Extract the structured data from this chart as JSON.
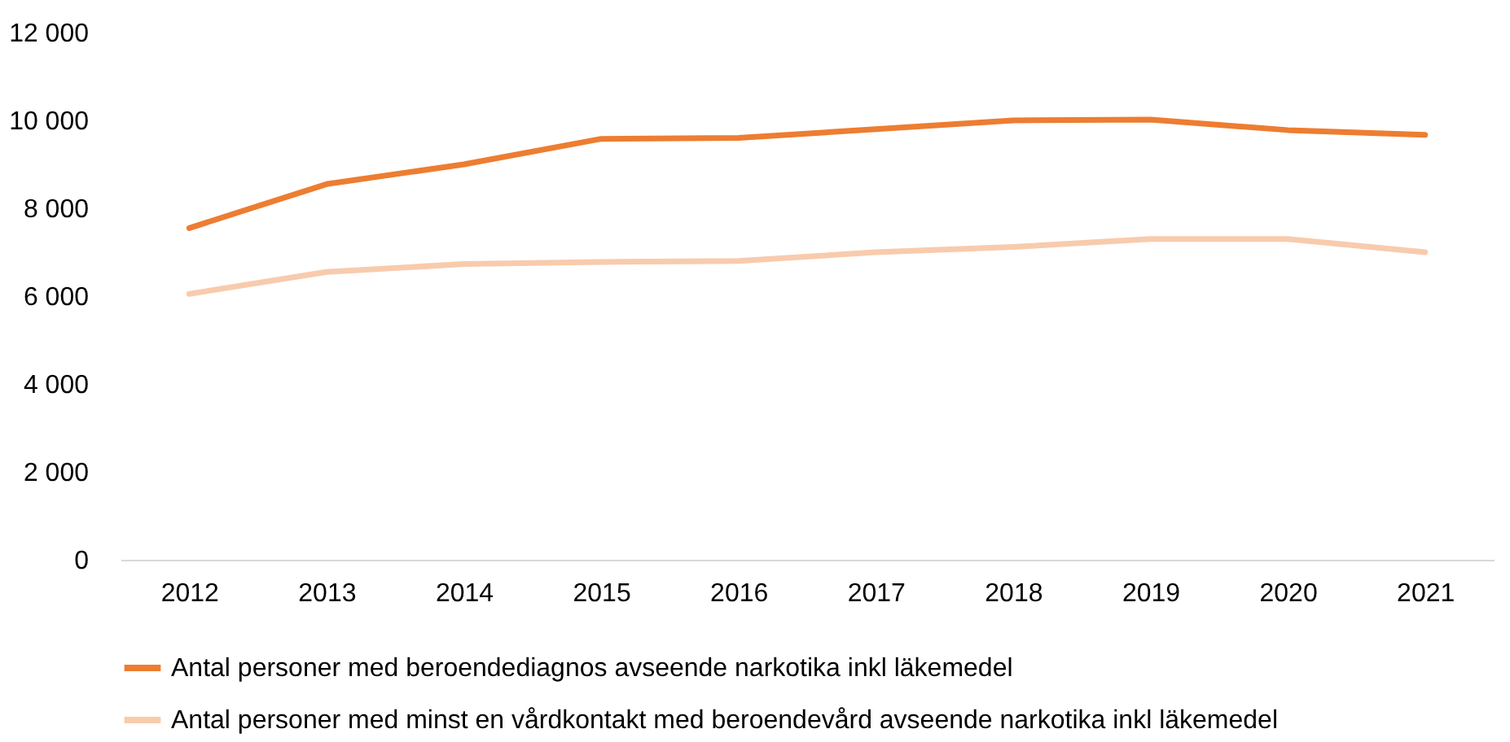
{
  "chart_data": {
    "type": "line",
    "categories": [
      "2012",
      "2013",
      "2014",
      "2015",
      "2016",
      "2017",
      "2018",
      "2019",
      "2020",
      "2021"
    ],
    "series": [
      {
        "name": "Antal personer med beroendediagnos avseende narkotika inkl läkemedel",
        "color": "#ed7d31",
        "values": [
          7550,
          8550,
          9000,
          9580,
          9600,
          9800,
          10000,
          10020,
          9780,
          9670
        ]
      },
      {
        "name": "Antal personer med minst en vårdkontakt med beroendevård avseende narkotika inkl läkemedel",
        "color": "#f8cbad",
        "values": [
          6050,
          6550,
          6730,
          6780,
          6800,
          7000,
          7120,
          7300,
          7300,
          7000
        ]
      }
    ],
    "ylim": [
      0,
      12000
    ],
    "yticks": [
      0,
      {
        "value": 2000,
        "label": "2 000"
      },
      {
        "value": 4000,
        "label": "4 000"
      },
      {
        "value": 6000,
        "label": "6 000"
      },
      {
        "value": 8000,
        "label": "8 000"
      },
      {
        "value": 10000,
        "label": "10 000"
      },
      {
        "value": 12000,
        "label": "12 000"
      }
    ],
    "grid": false,
    "legend": "bottom",
    "marker": "none",
    "line_style": "solid"
  }
}
